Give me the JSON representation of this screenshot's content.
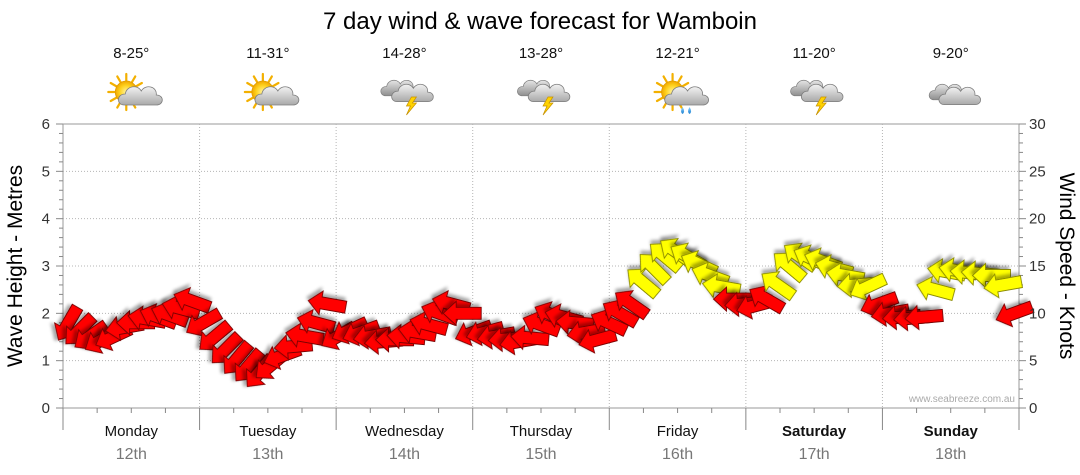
{
  "chart_data": {
    "type": "scatter",
    "title": "7 day wind & wave forecast for Wamboin",
    "ylabel_left": "Wave Height - Metres",
    "ylabel_right": "Wind Speed - Knots",
    "ylim_left": [
      0,
      6
    ],
    "ylim_right": [
      0,
      30
    ],
    "yticks_left": [
      "0",
      "1",
      "2",
      "3",
      "4",
      "5",
      "6"
    ],
    "yticks_right": [
      "0",
      "5",
      "10",
      "15",
      "20",
      "25",
      "30"
    ],
    "credit": "www.seabreeze.com.au",
    "days": [
      {
        "name": "Monday",
        "date": "12th",
        "temp": "8-25°",
        "weather": "sun-cloud",
        "bold": false
      },
      {
        "name": "Tuesday",
        "date": "13th",
        "temp": "11-31°",
        "weather": "sun-cloud",
        "bold": false
      },
      {
        "name": "Wednesday",
        "date": "14th",
        "temp": "14-28°",
        "weather": "storm",
        "bold": false
      },
      {
        "name": "Thursday",
        "date": "15th",
        "temp": "13-28°",
        "weather": "storm",
        "bold": false
      },
      {
        "name": "Friday",
        "date": "16th",
        "temp": "12-21°",
        "weather": "sun-rain",
        "bold": false
      },
      {
        "name": "Saturday",
        "date": "17th",
        "temp": "11-20°",
        "weather": "storm",
        "bold": true
      },
      {
        "name": "Sunday",
        "date": "18th",
        "temp": "9-20°",
        "weather": "cloud",
        "bold": true
      }
    ],
    "legend": {
      "strong_wind_color": "#ffff00",
      "moderate_wind_color": "#ff0000"
    },
    "wind_series": {
      "name": "Wind Speed (knots), hourly with direction of travel",
      "points": [
        {
          "hour": 0,
          "speed": 8.9,
          "dir": 120
        },
        {
          "hour": 2,
          "speed": 8.2,
          "dir": 135
        },
        {
          "hour": 4,
          "speed": 7.6,
          "dir": 145
        },
        {
          "hour": 6,
          "speed": 7.2,
          "dir": 150
        },
        {
          "hour": 8,
          "speed": 7.5,
          "dir": 155
        },
        {
          "hour": 10,
          "speed": 8.5,
          "dir": 170
        },
        {
          "hour": 12,
          "speed": 9.0,
          "dir": 180
        },
        {
          "hour": 14,
          "speed": 9.4,
          "dir": 190
        },
        {
          "hour": 16,
          "speed": 9.6,
          "dir": 200
        },
        {
          "hour": 18,
          "speed": 9.8,
          "dir": 200
        },
        {
          "hour": 20,
          "speed": 10.5,
          "dir": 195
        },
        {
          "hour": 22,
          "speed": 11.3,
          "dir": 200
        },
        {
          "hour": 24,
          "speed": 9.0,
          "dir": 150
        },
        {
          "hour": 26,
          "speed": 7.5,
          "dir": 140
        },
        {
          "hour": 28,
          "speed": 6.2,
          "dir": 135
        },
        {
          "hour": 30,
          "speed": 5.2,
          "dir": 130
        },
        {
          "hour": 32,
          "speed": 4.4,
          "dir": 130
        },
        {
          "hour": 34,
          "speed": 3.8,
          "dir": 130
        },
        {
          "hour": 36,
          "speed": 4.5,
          "dir": 140
        },
        {
          "hour": 38,
          "speed": 5.5,
          "dir": 160
        },
        {
          "hour": 40,
          "speed": 6.5,
          "dir": 175
        },
        {
          "hour": 42,
          "speed": 7.6,
          "dir": 190
        },
        {
          "hour": 44,
          "speed": 9.0,
          "dir": 195
        },
        {
          "hour": 46,
          "speed": 11.0,
          "dir": 190
        },
        {
          "hour": 48,
          "speed": 7.6,
          "dir": 150
        },
        {
          "hour": 50,
          "speed": 8.2,
          "dir": 155
        },
        {
          "hour": 52,
          "speed": 8.0,
          "dir": 160
        },
        {
          "hour": 54,
          "speed": 7.6,
          "dir": 170
        },
        {
          "hour": 56,
          "speed": 7.0,
          "dir": 175
        },
        {
          "hour": 58,
          "speed": 7.2,
          "dir": 180
        },
        {
          "hour": 60,
          "speed": 7.5,
          "dir": 185
        },
        {
          "hour": 62,
          "speed": 8.0,
          "dir": 190
        },
        {
          "hour": 64,
          "speed": 8.8,
          "dir": 195
        },
        {
          "hour": 66,
          "speed": 10.0,
          "dir": 200
        },
        {
          "hour": 68,
          "speed": 11.0,
          "dir": 195
        },
        {
          "hour": 70,
          "speed": 10.0,
          "dir": 180
        },
        {
          "hour": 72,
          "speed": 8.0,
          "dir": 160
        },
        {
          "hour": 74,
          "speed": 8.0,
          "dir": 165
        },
        {
          "hour": 76,
          "speed": 7.6,
          "dir": 170
        },
        {
          "hour": 78,
          "speed": 7.3,
          "dir": 175
        },
        {
          "hour": 80,
          "speed": 7.0,
          "dir": 170
        },
        {
          "hour": 82,
          "speed": 7.4,
          "dir": 185
        },
        {
          "hour": 84,
          "speed": 8.8,
          "dir": 200
        },
        {
          "hour": 86,
          "speed": 9.8,
          "dir": 205
        },
        {
          "hour": 88,
          "speed": 9.6,
          "dir": 195
        },
        {
          "hour": 90,
          "speed": 9.0,
          "dir": 185
        },
        {
          "hour": 92,
          "speed": 8.0,
          "dir": 170
        },
        {
          "hour": 94,
          "speed": 7.2,
          "dir": 165
        },
        {
          "hour": 96,
          "speed": 9.0,
          "dir": 205
        },
        {
          "hour": 98,
          "speed": 10.0,
          "dir": 210
        },
        {
          "hour": 100,
          "speed": 11.0,
          "dir": 215
        },
        {
          "hour": 102,
          "speed": 13.3,
          "dir": 220
        },
        {
          "hour": 104,
          "speed": 14.8,
          "dir": 225
        },
        {
          "hour": 106,
          "speed": 16.0,
          "dir": 220
        },
        {
          "hour": 108,
          "speed": 16.5,
          "dir": 215
        },
        {
          "hour": 110,
          "speed": 16.0,
          "dir": 210
        },
        {
          "hour": 112,
          "speed": 15.2,
          "dir": 205
        },
        {
          "hour": 114,
          "speed": 14.0,
          "dir": 200
        },
        {
          "hour": 116,
          "speed": 12.8,
          "dir": 190
        },
        {
          "hour": 118,
          "speed": 11.5,
          "dir": 180
        },
        {
          "hour": 120,
          "speed": 11.0,
          "dir": 175
        },
        {
          "hour": 122,
          "speed": 10.8,
          "dir": 165
        },
        {
          "hour": 124,
          "speed": 11.5,
          "dir": 210
        },
        {
          "hour": 126,
          "speed": 13.0,
          "dir": 215
        },
        {
          "hour": 128,
          "speed": 15.0,
          "dir": 220
        },
        {
          "hour": 130,
          "speed": 16.0,
          "dir": 215
        },
        {
          "hour": 132,
          "speed": 15.8,
          "dir": 205
        },
        {
          "hour": 134,
          "speed": 15.5,
          "dir": 200
        },
        {
          "hour": 136,
          "speed": 14.8,
          "dir": 195
        },
        {
          "hour": 138,
          "speed": 14.0,
          "dir": 190
        },
        {
          "hour": 140,
          "speed": 13.0,
          "dir": 175
        },
        {
          "hour": 142,
          "speed": 12.8,
          "dir": 155
        },
        {
          "hour": 144,
          "speed": 11.0,
          "dir": 160
        },
        {
          "hour": 146,
          "speed": 10.0,
          "dir": 170
        },
        {
          "hour": 148,
          "speed": 9.6,
          "dir": 175
        },
        {
          "hour": 150,
          "speed": 9.5,
          "dir": 175
        },
        {
          "hour": 152,
          "speed": 9.6,
          "dir": 175
        },
        {
          "hour": 154,
          "speed": 12.5,
          "dir": 195
        },
        {
          "hour": 156,
          "speed": 14.4,
          "dir": 190
        },
        {
          "hour": 158,
          "speed": 14.5,
          "dir": 190
        },
        {
          "hour": 160,
          "speed": 14.3,
          "dir": 185
        },
        {
          "hour": 162,
          "speed": 14.2,
          "dir": 185
        },
        {
          "hour": 164,
          "speed": 14.0,
          "dir": 180
        },
        {
          "hour": 166,
          "speed": 13.0,
          "dir": 170
        },
        {
          "hour": 168,
          "speed": 10.0,
          "dir": 160
        }
      ]
    }
  }
}
